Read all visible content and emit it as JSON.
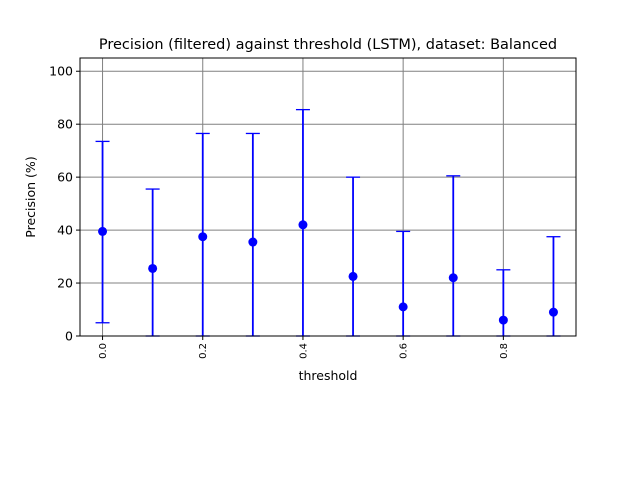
{
  "chart_data": {
    "type": "scatter",
    "title": "Precision (filtered) against threshold (LSTM), dataset: Balanced",
    "xlabel": "threshold",
    "ylabel": "Precision (%)",
    "xlim": [
      -0.045,
      0.945
    ],
    "ylim": [
      0,
      105
    ],
    "grid": true,
    "x_ticks": [
      0.0,
      0.2,
      0.4,
      0.6,
      0.8
    ],
    "x_tick_labels": [
      "0.0",
      "0.2",
      "0.4",
      "0.6",
      "0.8"
    ],
    "y_ticks": [
      0,
      20,
      40,
      60,
      80,
      100
    ],
    "y_tick_labels": [
      "0",
      "20",
      "40",
      "60",
      "80",
      "100"
    ],
    "color": "#0000ff",
    "series": [
      {
        "x": [
          0.0,
          0.1,
          0.2,
          0.3,
          0.4,
          0.5,
          0.6,
          0.7,
          0.8,
          0.9
        ],
        "y": [
          39.5,
          25.5,
          37.5,
          35.5,
          42.0,
          22.5,
          11.0,
          22.0,
          6.0,
          9.0
        ],
        "err_low": [
          5.0,
          0,
          0,
          0,
          0,
          0,
          0,
          0,
          0,
          0
        ],
        "err_high": [
          73.5,
          55.5,
          76.5,
          76.5,
          85.5,
          60.0,
          39.5,
          60.5,
          25.0,
          37.5
        ]
      }
    ]
  }
}
